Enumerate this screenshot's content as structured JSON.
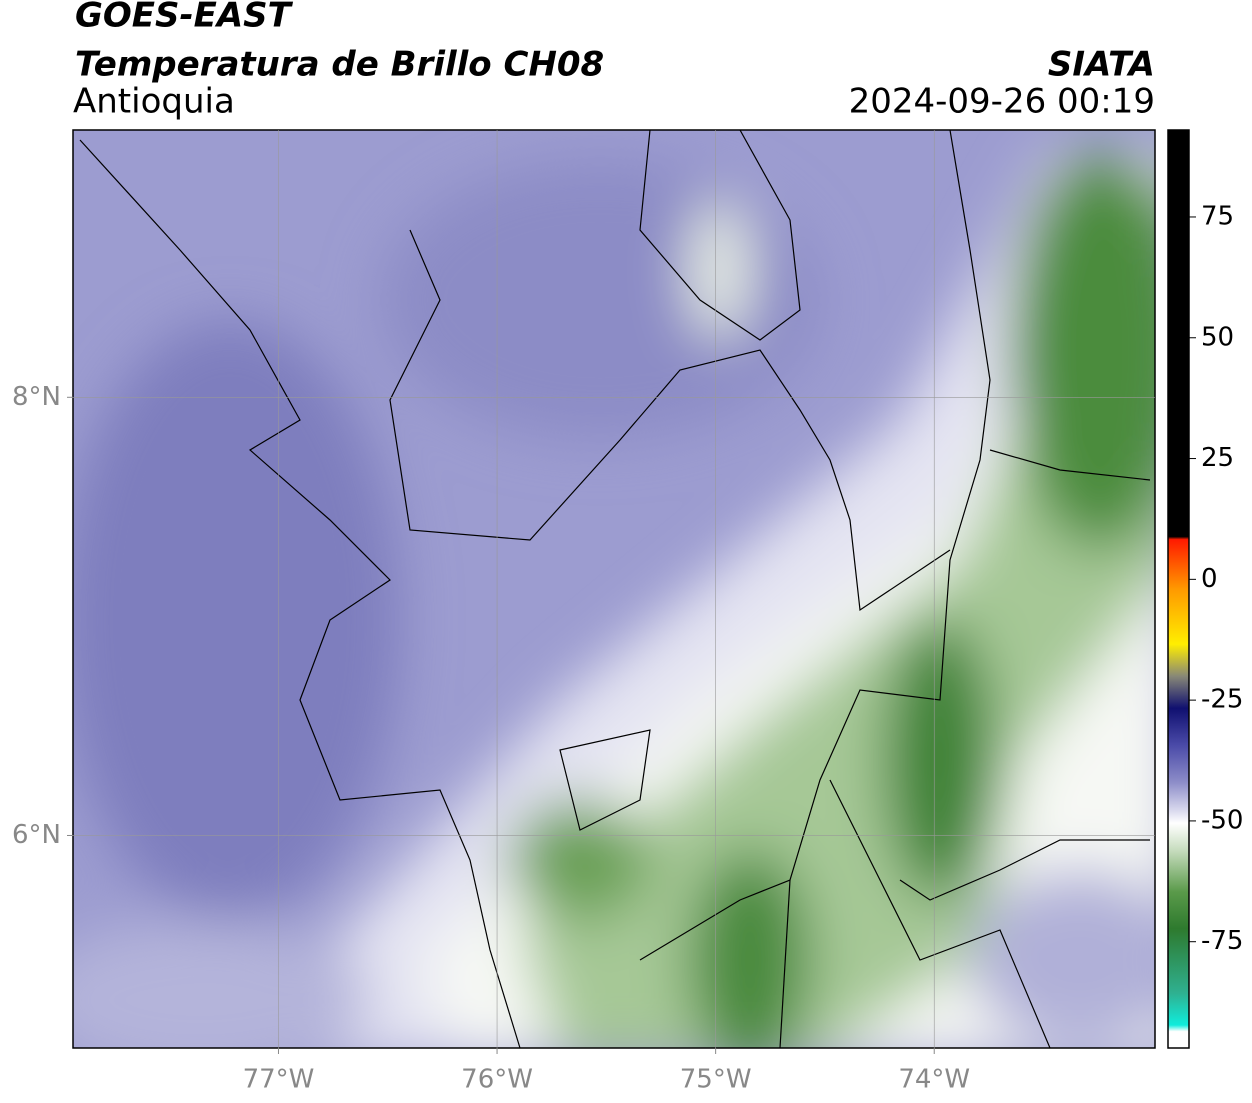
{
  "header": {
    "title": "GOES-EAST",
    "subtitle": "Temperatura de Brillo CH08",
    "region": "Antioquia",
    "source": "SIATA",
    "datetime": "2024-09-26 00:19"
  },
  "map": {
    "xlim": [
      -77.94,
      -72.99
    ],
    "ylim": [
      5.03,
      9.22
    ],
    "xticks": [
      {
        "value": -77,
        "label": "77°W"
      },
      {
        "value": -76,
        "label": "76°W"
      },
      {
        "value": -75,
        "label": "75°W"
      },
      {
        "value": -74,
        "label": "74°W"
      }
    ],
    "yticks": [
      {
        "value": 6,
        "label": "6°N"
      },
      {
        "value": 8,
        "label": "8°N"
      }
    ],
    "grid": true
  },
  "colorbar": {
    "ylim": [
      -97,
      93
    ],
    "yticks": [
      -75,
      -50,
      -25,
      0,
      25,
      50,
      75
    ]
  }
}
